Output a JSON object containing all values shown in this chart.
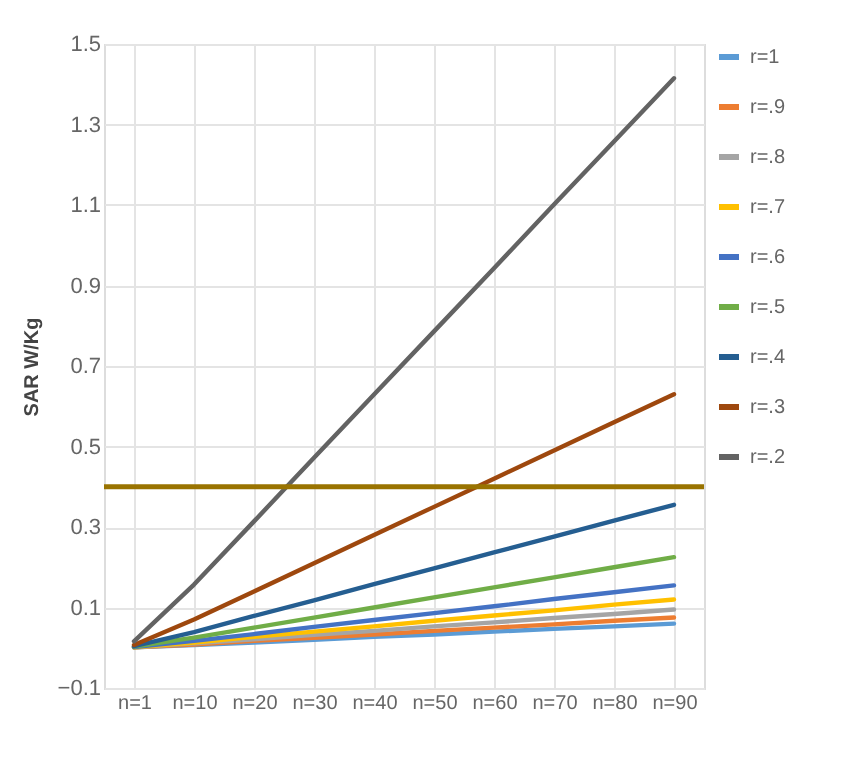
{
  "chart_data": {
    "type": "line",
    "ylabel": "SAR W/Kg",
    "categories": [
      "n=1",
      "n=10",
      "n=20",
      "n=30",
      "n=40",
      "n=50",
      "n=60",
      "n=70",
      "n=80",
      "n=90"
    ],
    "series": [
      {
        "name": "r=1",
        "color": "#5b9bd5",
        "values": [
          0.001,
          0.007,
          0.013,
          0.02,
          0.027,
          0.033,
          0.04,
          0.047,
          0.053,
          0.06
        ]
      },
      {
        "name": "r=.9",
        "color": "#ed7d31",
        "values": [
          0.001,
          0.008,
          0.017,
          0.025,
          0.033,
          0.042,
          0.05,
          0.058,
          0.067,
          0.075
        ]
      },
      {
        "name": "r=.8",
        "color": "#a5a5a5",
        "values": [
          0.001,
          0.011,
          0.021,
          0.032,
          0.042,
          0.053,
          0.063,
          0.074,
          0.084,
          0.095
        ]
      },
      {
        "name": "r=.7",
        "color": "#ffc000",
        "values": [
          0.001,
          0.013,
          0.027,
          0.04,
          0.053,
          0.067,
          0.08,
          0.093,
          0.107,
          0.12
        ]
      },
      {
        "name": "r=.6",
        "color": "#4472c4",
        "values": [
          0.002,
          0.017,
          0.034,
          0.052,
          0.069,
          0.086,
          0.103,
          0.121,
          0.138,
          0.155
        ]
      },
      {
        "name": "r=.5",
        "color": "#70ad47",
        "values": [
          0.003,
          0.025,
          0.05,
          0.075,
          0.1,
          0.125,
          0.15,
          0.175,
          0.2,
          0.225
        ]
      },
      {
        "name": "r=.4",
        "color": "#255e91",
        "values": [
          0.004,
          0.039,
          0.079,
          0.118,
          0.158,
          0.197,
          0.237,
          0.276,
          0.316,
          0.355
        ]
      },
      {
        "name": "r=.3",
        "color": "#9e480e",
        "values": [
          0.007,
          0.07,
          0.14,
          0.21,
          0.28,
          0.35,
          0.42,
          0.49,
          0.56,
          0.63
        ]
      },
      {
        "name": "r=.2",
        "color": "#636363",
        "values": [
          0.016,
          0.157,
          0.314,
          0.472,
          0.629,
          0.786,
          0.943,
          1.101,
          1.258,
          1.415
        ]
      }
    ],
    "ref_lines": [
      {
        "axis": "y",
        "value": 0.4,
        "color": "#997300"
      }
    ],
    "ylim": [
      -0.1,
      1.5
    ],
    "yticks": [
      -0.1,
      0.1,
      0.3,
      0.5,
      0.7,
      0.9,
      1.1,
      1.3,
      1.5
    ],
    "grid": true,
    "legend": "right",
    "marker": "none",
    "line_style": "solid"
  }
}
